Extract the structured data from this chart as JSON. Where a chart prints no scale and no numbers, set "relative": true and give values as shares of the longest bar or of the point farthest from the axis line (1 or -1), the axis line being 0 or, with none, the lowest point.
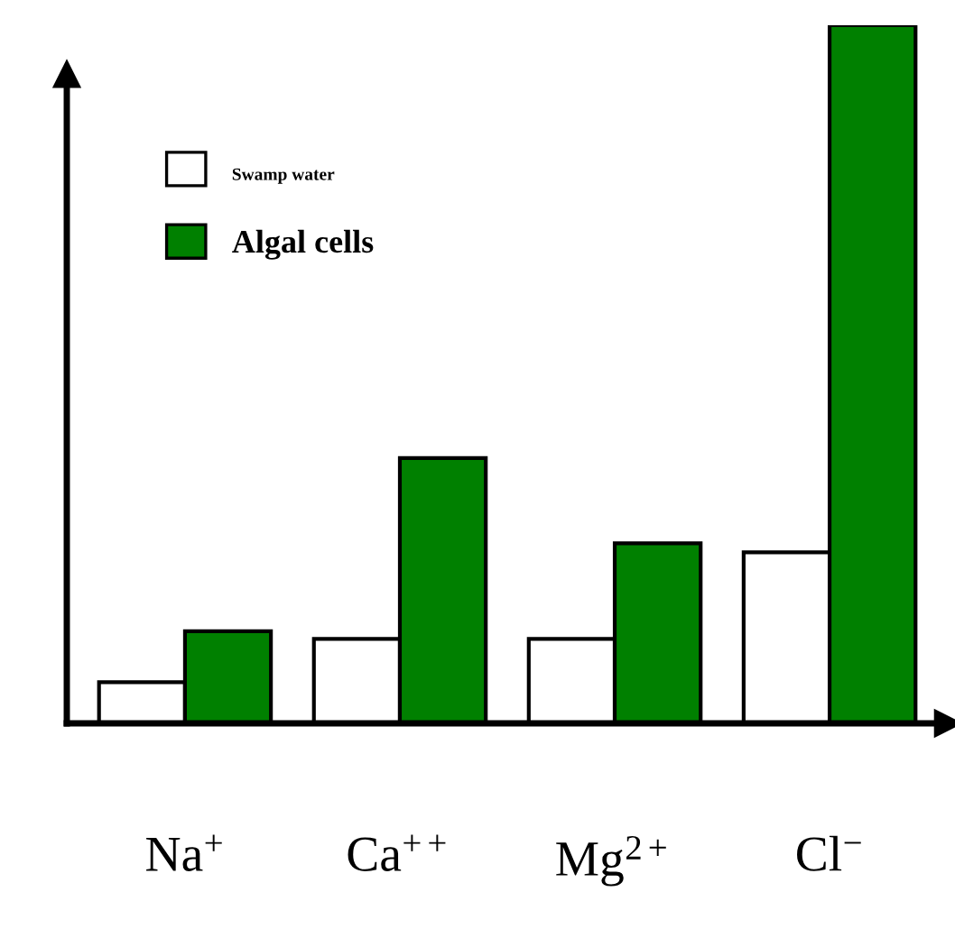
{
  "chart_data": {
    "type": "bar",
    "relative": true,
    "categories": [
      "Na$^{+}$",
      "Ca$^{++}$",
      "Mg$^{2+}$",
      "Cl$^{−}$"
    ],
    "series": [
      {
        "name": "Swamp water",
        "color": "#ffffff",
        "values": [
          0.059,
          0.121,
          0.121,
          0.245
        ]
      },
      {
        "name": "Algal cells",
        "color": "#008000",
        "values": [
          0.132,
          0.38,
          0.258,
          1
        ]
      }
    ],
    "legend": "top left",
    "grid": false
  }
}
